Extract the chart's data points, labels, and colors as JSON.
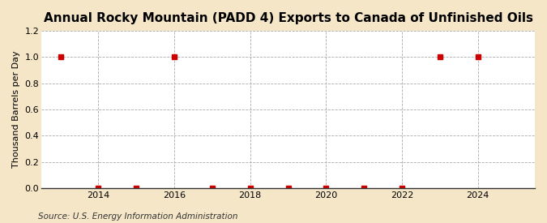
{
  "title": "Annual Rocky Mountain (PADD 4) Exports to Canada of Unfinished Oils",
  "ylabel": "Thousand Barrels per Day",
  "source": "Source: U.S. Energy Information Administration",
  "years": [
    2013,
    2014,
    2015,
    2016,
    2017,
    2018,
    2019,
    2020,
    2021,
    2022,
    2023,
    2024
  ],
  "values": [
    1.0,
    0.0,
    0.0,
    1.0,
    0.0,
    0.0,
    0.0,
    0.0,
    0.0,
    0.0,
    1.0,
    1.0
  ],
  "ylim": [
    0.0,
    1.2
  ],
  "yticks": [
    0.0,
    0.2,
    0.4,
    0.6,
    0.8,
    1.0,
    1.2
  ],
  "xticks": [
    2014,
    2016,
    2018,
    2020,
    2022,
    2024
  ],
  "xlim": [
    2012.5,
    2025.5
  ],
  "marker_color": "#cc0000",
  "marker": "s",
  "marker_size": 4,
  "line_color": "#cc0000",
  "grid_color": "#aaaaaa",
  "background_color": "#f5e6c8",
  "plot_bg_color": "#ffffff",
  "title_fontsize": 11,
  "label_fontsize": 8,
  "tick_fontsize": 8,
  "source_fontsize": 7.5
}
